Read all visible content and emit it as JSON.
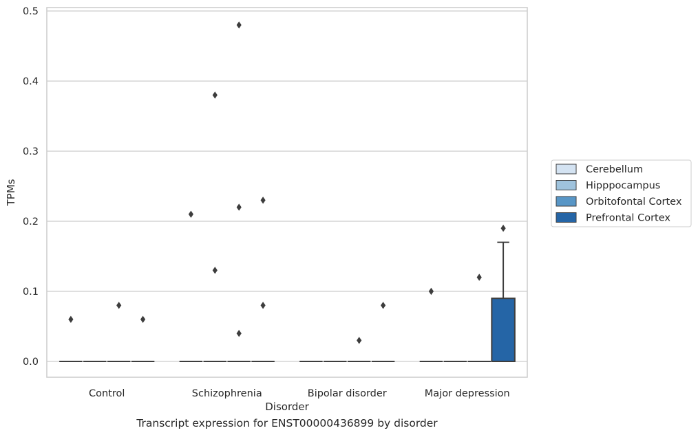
{
  "chart_data": {
    "type": "box",
    "title": "",
    "caption": "Transcript expression for ENST00000436899 by disorder",
    "xlabel": "Disorder",
    "ylabel": "TPMs",
    "ylim": [
      -0.023,
      0.505
    ],
    "yticks": [
      "0.0",
      "0.1",
      "0.2",
      "0.3",
      "0.4",
      "0.5"
    ],
    "categories": [
      "Control",
      "Schizophrenia",
      "Bipolar disorder",
      "Major depression"
    ],
    "grid": "horizontal",
    "legend_position": "right",
    "series": [
      {
        "name": "Cerebellum",
        "color": "#d4e3f2",
        "boxes": [
          {
            "q1": 0,
            "median": 0,
            "q3": 0,
            "whisker_low": 0,
            "whisker_high": 0,
            "outliers": [
              0.06
            ]
          },
          {
            "q1": 0,
            "median": 0,
            "q3": 0,
            "whisker_low": 0,
            "whisker_high": 0,
            "outliers": [
              0.21
            ]
          },
          {
            "q1": 0,
            "median": 0,
            "q3": 0,
            "whisker_low": 0,
            "whisker_high": 0,
            "outliers": []
          },
          {
            "q1": 0,
            "median": 0,
            "q3": 0,
            "whisker_low": 0,
            "whisker_high": 0,
            "outliers": [
              0.1
            ]
          }
        ]
      },
      {
        "name": "Hipppocampus",
        "color": "#9fc3dd",
        "boxes": [
          {
            "q1": 0,
            "median": 0,
            "q3": 0,
            "whisker_low": 0,
            "whisker_high": 0,
            "outliers": []
          },
          {
            "q1": 0,
            "median": 0,
            "q3": 0,
            "whisker_low": 0,
            "whisker_high": 0,
            "outliers": [
              0.38,
              0.13
            ]
          },
          {
            "q1": 0,
            "median": 0,
            "q3": 0,
            "whisker_low": 0,
            "whisker_high": 0,
            "outliers": []
          },
          {
            "q1": 0,
            "median": 0,
            "q3": 0,
            "whisker_low": 0,
            "whisker_high": 0,
            "outliers": []
          }
        ]
      },
      {
        "name": "Orbitofontal Cortex",
        "color": "#5896c6",
        "boxes": [
          {
            "q1": 0,
            "median": 0,
            "q3": 0,
            "whisker_low": 0,
            "whisker_high": 0,
            "outliers": [
              0.08
            ]
          },
          {
            "q1": 0,
            "median": 0,
            "q3": 0,
            "whisker_low": 0,
            "whisker_high": 0,
            "outliers": [
              0.48,
              0.22,
              0.04
            ]
          },
          {
            "q1": 0,
            "median": 0,
            "q3": 0,
            "whisker_low": 0,
            "whisker_high": 0,
            "outliers": [
              0.03
            ]
          },
          {
            "q1": 0,
            "median": 0,
            "q3": 0,
            "whisker_low": 0,
            "whisker_high": 0,
            "outliers": [
              0.12
            ]
          }
        ]
      },
      {
        "name": "Prefrontal Cortex",
        "color": "#2565a6",
        "boxes": [
          {
            "q1": 0,
            "median": 0,
            "q3": 0,
            "whisker_low": 0,
            "whisker_high": 0,
            "outliers": [
              0.06
            ]
          },
          {
            "q1": 0,
            "median": 0,
            "q3": 0,
            "whisker_low": 0,
            "whisker_high": 0,
            "outliers": [
              0.23,
              0.08
            ]
          },
          {
            "q1": 0,
            "median": 0,
            "q3": 0,
            "whisker_low": 0,
            "whisker_high": 0,
            "outliers": [
              0.08
            ]
          },
          {
            "q1": 0,
            "median": 0,
            "q3": 0.09,
            "whisker_low": 0,
            "whisker_high": 0.17,
            "outliers": [
              0.19
            ]
          }
        ]
      }
    ]
  }
}
